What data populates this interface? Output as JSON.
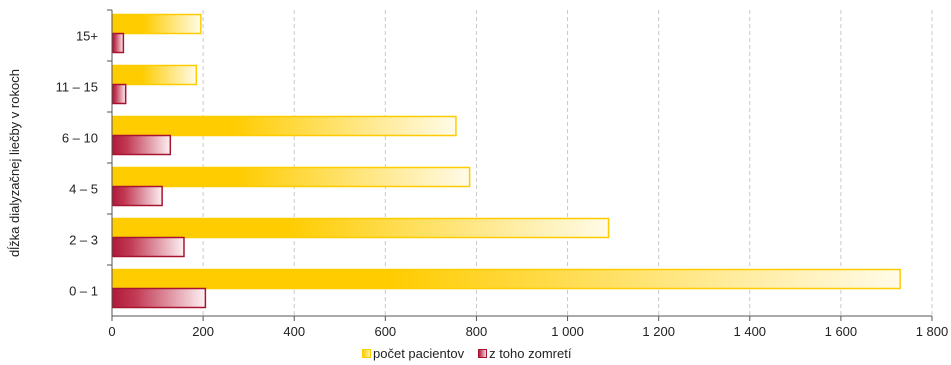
{
  "chart_data": {
    "type": "bar",
    "orientation": "horizontal",
    "title": "",
    "ylabel": "dĺžka dialyzačnej liečby v rokoch",
    "xlabel": "",
    "categories": [
      "0 – 1",
      "2 – 3",
      "4 – 5",
      "6 – 10",
      "11 – 15",
      "15+"
    ],
    "series": [
      {
        "name": "počet pacientov",
        "values": [
          1730,
          1090,
          785,
          755,
          185,
          195
        ],
        "color": "#ffcc00"
      },
      {
        "name": "z toho zomretí",
        "values": [
          205,
          158,
          110,
          128,
          30,
          25
        ],
        "color": "#b01a3a"
      }
    ],
    "xlim": [
      0,
      1800
    ],
    "xticks": [
      0,
      200,
      400,
      600,
      800,
      1000,
      1200,
      1400,
      1600,
      1800
    ],
    "xtick_labels": [
      "0",
      "200",
      "400",
      "600",
      "800",
      "1 000",
      "1 200",
      "1 400",
      "1 600",
      "1 800"
    ],
    "grid": "vertical dashed",
    "legend": "bottom"
  }
}
